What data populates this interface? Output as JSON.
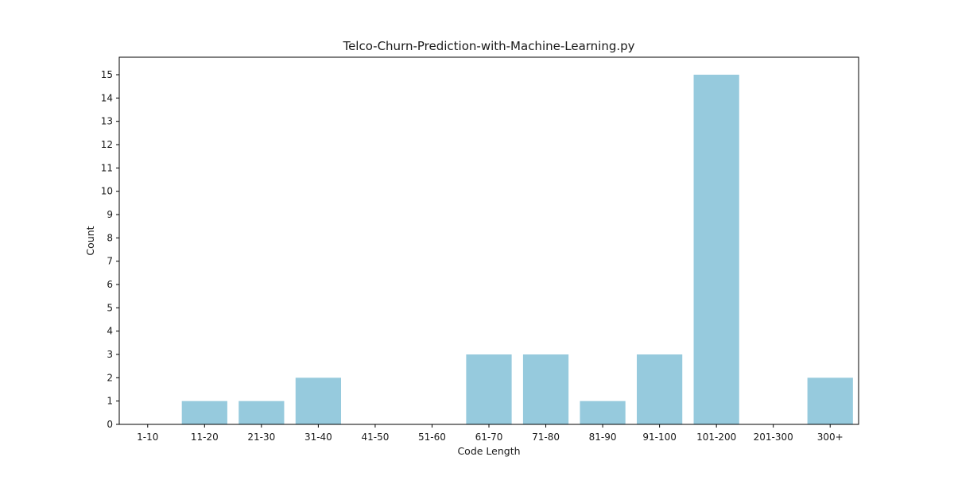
{
  "chart_data": {
    "type": "bar",
    "title": "Telco-Churn-Prediction-with-Machine-Learning.py",
    "xlabel": "Code Length",
    "ylabel": "Count",
    "categories": [
      "1-10",
      "11-20",
      "21-30",
      "31-40",
      "41-50",
      "51-60",
      "61-70",
      "71-80",
      "81-90",
      "91-100",
      "101-200",
      "201-300",
      "300+"
    ],
    "values": [
      0,
      1,
      1,
      2,
      0,
      0,
      3,
      3,
      1,
      3,
      15,
      0,
      2
    ],
    "yticks": [
      0,
      1,
      2,
      3,
      4,
      5,
      6,
      7,
      8,
      9,
      10,
      11,
      12,
      13,
      14,
      15
    ],
    "ylim": [
      0,
      15.75
    ],
    "grid": false,
    "bar_color": "#96cadd",
    "axis_color": "#000000"
  }
}
